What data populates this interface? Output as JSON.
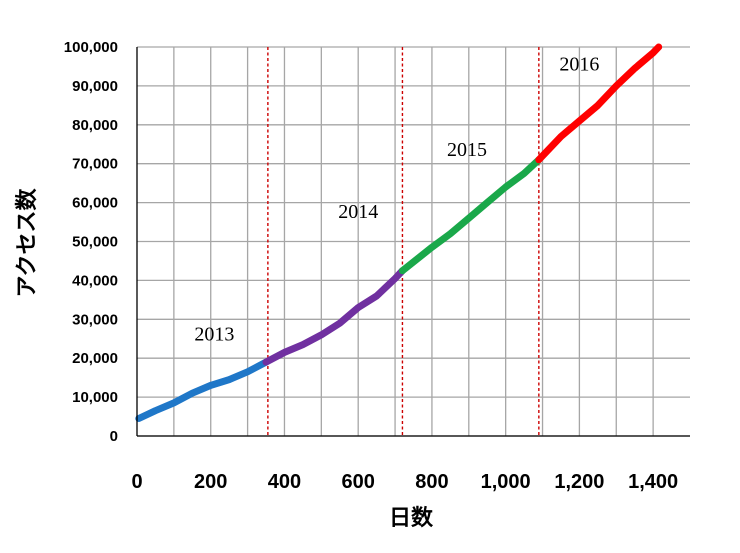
{
  "chart_data": {
    "type": "line",
    "title": "",
    "xlabel": "日数",
    "ylabel": "アクセス数",
    "xlim": [
      0,
      1500
    ],
    "ylim": [
      0,
      100000
    ],
    "x_ticks": [
      0,
      200,
      400,
      600,
      800,
      1000,
      1200,
      1400
    ],
    "x_tick_labels": [
      "0",
      "200",
      "400",
      "600",
      "800",
      "1,000",
      "1,200",
      "1,400"
    ],
    "y_ticks": [
      0,
      10000,
      20000,
      30000,
      40000,
      50000,
      60000,
      70000,
      80000,
      90000,
      100000
    ],
    "y_tick_labels": [
      "0",
      "10,000",
      "20,000",
      "30,000",
      "40,000",
      "50,000",
      "60,000",
      "70,000",
      "80,000",
      "90,000",
      "100,000"
    ],
    "grid": true,
    "series": [
      {
        "name": "2013",
        "color": "#1f77c8",
        "x": [
          5,
          50,
          100,
          150,
          200,
          250,
          300,
          350
        ],
        "y": [
          4500,
          6500,
          8500,
          11000,
          13000,
          14500,
          16500,
          19000
        ]
      },
      {
        "name": "2014",
        "color": "#7030a0",
        "x": [
          350,
          400,
          450,
          500,
          550,
          600,
          650,
          700,
          720
        ],
        "y": [
          19000,
          21500,
          23500,
          26000,
          29000,
          33000,
          36000,
          40500,
          42500
        ]
      },
      {
        "name": "2015",
        "color": "#1aa84a",
        "x": [
          720,
          800,
          850,
          900,
          950,
          1000,
          1050,
          1090
        ],
        "y": [
          42500,
          48500,
          52000,
          56000,
          60000,
          64000,
          67500,
          71000
        ]
      },
      {
        "name": "2016",
        "color": "#ff0000",
        "x": [
          1090,
          1150,
          1200,
          1250,
          1300,
          1350,
          1400,
          1415
        ],
        "y": [
          71000,
          77000,
          81000,
          85000,
          90000,
          94500,
          98500,
          100000
        ]
      }
    ],
    "year_boundaries": [
      355,
      720,
      1090
    ],
    "boundary_color": "#cc0000",
    "annotations": [
      {
        "text": "2013",
        "x": 210,
        "y": 24500
      },
      {
        "text": "2014",
        "x": 600,
        "y": 56000
      },
      {
        "text": "2015",
        "x": 895,
        "y": 72000
      },
      {
        "text": "2016",
        "x": 1200,
        "y": 94000
      }
    ]
  }
}
